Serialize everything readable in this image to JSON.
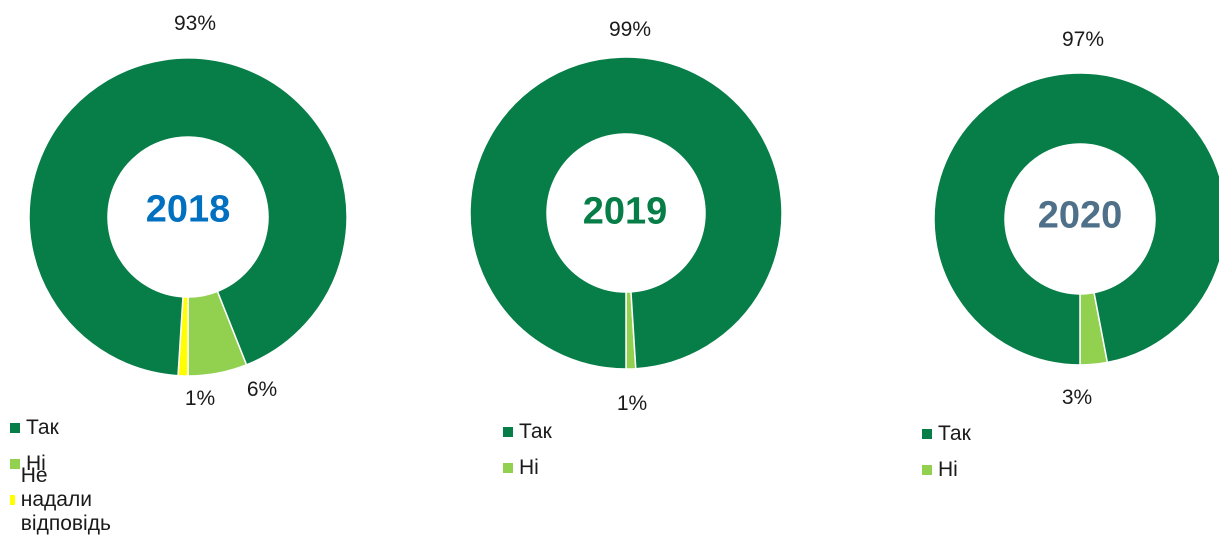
{
  "colors": {
    "yes": "#077D47",
    "no": "#92D050",
    "no_answer": "#FFFF00"
  },
  "chart_data": [
    {
      "type": "pie",
      "center_label": "2018",
      "center_label_color": "#0070C0",
      "categories": [
        "Так",
        "Ні",
        "Не надали відповідь"
      ],
      "values": [
        93,
        6,
        1
      ],
      "data_labels": [
        "93%",
        "6%",
        "1%"
      ]
    },
    {
      "type": "pie",
      "center_label": "2019",
      "center_label_color": "#077D47",
      "categories": [
        "Так",
        "Ні"
      ],
      "values": [
        99,
        1
      ],
      "data_labels": [
        "99%",
        "1%"
      ]
    },
    {
      "type": "pie",
      "center_label": "2020",
      "center_label_color": "#4E7089",
      "categories": [
        "Так",
        "Ні"
      ],
      "values": [
        97,
        3
      ],
      "data_labels": [
        "97%",
        "3%"
      ]
    }
  ]
}
